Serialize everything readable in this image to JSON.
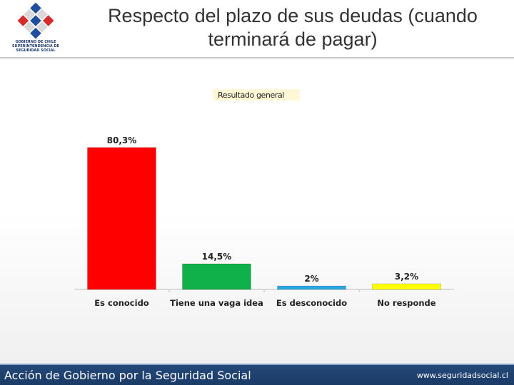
{
  "header": {
    "logo_lines": [
      "GOBIERNO DE CHILE",
      "SUPERINTENDENCIA DE",
      "SEGURIDAD SOCIAL"
    ],
    "title_line1": "Respecto del plazo de sus deudas (cuando",
    "title_line2": "terminará de pagar)"
  },
  "chart_data": {
    "type": "bar",
    "title": "Resultado general",
    "categories": [
      "Es conocido",
      "Tiene una vaga idea",
      "Es desconocido",
      "No responde"
    ],
    "values": [
      80.3,
      14.5,
      2,
      3.2
    ],
    "data_labels": [
      "80,3%",
      "14,5%",
      "2%",
      "3,2%"
    ],
    "colors": [
      "#ff0000",
      "#10b04a",
      "#2aa7e0",
      "#ffff00"
    ],
    "ylim": [
      0,
      100
    ],
    "xlabel": "",
    "ylabel": ""
  },
  "footer": {
    "left_text": "Acción de Gobierno por la Seguridad Social",
    "right_text": "www.seguridadsocial.cl"
  }
}
